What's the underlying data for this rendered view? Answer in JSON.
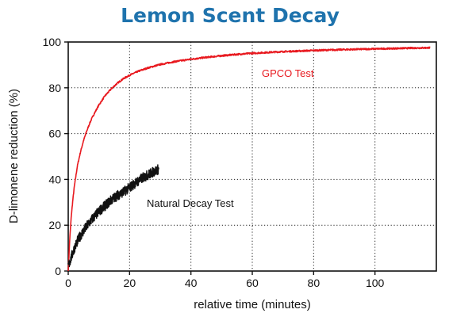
{
  "chart_data": {
    "type": "line",
    "title": "Lemon Scent Decay",
    "xlabel": "relative time (minutes)",
    "ylabel": "D-limonene reduction (%)",
    "xlim": [
      0,
      120
    ],
    "ylim": [
      0,
      100
    ],
    "x_ticks": [
      0,
      20,
      40,
      60,
      80,
      100
    ],
    "y_ticks": [
      0,
      20,
      40,
      60,
      80,
      100
    ],
    "grid": "dotted",
    "legend": "none",
    "series": [
      {
        "name": "GPCO Test",
        "color": "#e8191f",
        "x": [
          0,
          0.5,
          1,
          1.5,
          2,
          3,
          4,
          5,
          6,
          7,
          8,
          10,
          12,
          14,
          16,
          18,
          20,
          23,
          26,
          30,
          35,
          40,
          45,
          50,
          55,
          60,
          70,
          80,
          90,
          100,
          110,
          118
        ],
        "y": [
          0,
          14,
          24,
          31,
          37,
          46,
          52,
          57,
          61,
          64.5,
          67.5,
          72.5,
          76.5,
          79.5,
          82,
          84,
          85.5,
          87.3,
          88.7,
          90.2,
          91.5,
          92.5,
          93.3,
          94,
          94.6,
          95.1,
          95.8,
          96.3,
          96.7,
          97,
          97.3,
          97.5
        ]
      },
      {
        "name": "Natural Decay Test",
        "color": "#111111",
        "x": [
          0,
          1,
          2,
          3,
          4,
          6,
          8,
          10,
          12,
          14,
          16,
          18,
          20,
          22,
          24,
          26,
          28,
          29.5
        ],
        "y": [
          2,
          6,
          10,
          13,
          15.5,
          19.5,
          23,
          26,
          28.5,
          31,
          33,
          34.5,
          36.5,
          38.5,
          40.5,
          42,
          43.5,
          44.5
        ]
      }
    ]
  }
}
